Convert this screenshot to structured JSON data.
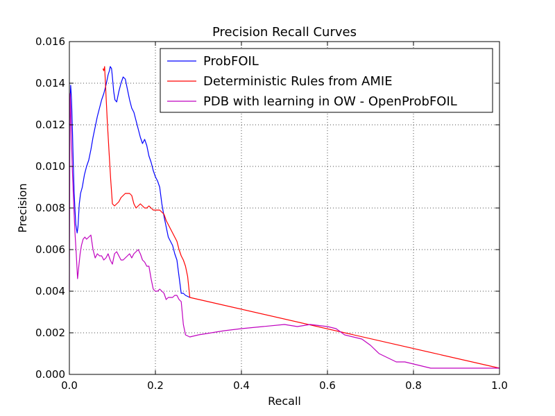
{
  "chart_data": {
    "type": "line",
    "title": "Precision Recall Curves",
    "xlabel": "Recall",
    "ylabel": "Precision",
    "xlim": [
      0.0,
      1.0
    ],
    "ylim": [
      0.0,
      0.016
    ],
    "grid": true,
    "legend_position": "top-right",
    "x_ticks": [
      0.0,
      0.2,
      0.4,
      0.6,
      0.8,
      1.0
    ],
    "x_tick_labels": [
      "0.0",
      "0.2",
      "0.4",
      "0.6",
      "0.8",
      "1.0"
    ],
    "y_ticks": [
      0.0,
      0.002,
      0.004,
      0.006,
      0.008,
      0.01,
      0.012,
      0.014,
      0.016
    ],
    "y_tick_labels": [
      "0.000",
      "0.002",
      "0.004",
      "0.006",
      "0.008",
      "0.010",
      "0.012",
      "0.014",
      "0.016"
    ],
    "series": [
      {
        "name": "ProbFOIL",
        "color": "#0000ff",
        "x": [
          0.0,
          0.003,
          0.005,
          0.007,
          0.009,
          0.011,
          0.013,
          0.015,
          0.018,
          0.02,
          0.023,
          0.026,
          0.03,
          0.035,
          0.04,
          0.045,
          0.05,
          0.055,
          0.06,
          0.065,
          0.07,
          0.075,
          0.08,
          0.085,
          0.088,
          0.09,
          0.093,
          0.095,
          0.098,
          0.1,
          0.103,
          0.106,
          0.11,
          0.115,
          0.12,
          0.125,
          0.13,
          0.135,
          0.14,
          0.145,
          0.15,
          0.155,
          0.16,
          0.165,
          0.17,
          0.175,
          0.18,
          0.185,
          0.19,
          0.195,
          0.2,
          0.205,
          0.21,
          0.215,
          0.22,
          0.225,
          0.23,
          0.235,
          0.24,
          0.245,
          0.25,
          0.255,
          0.26,
          0.265,
          0.27,
          0.28
        ],
        "y": [
          0.012,
          0.0139,
          0.0132,
          0.0119,
          0.0102,
          0.0088,
          0.0079,
          0.0072,
          0.0068,
          0.0071,
          0.0082,
          0.0087,
          0.009,
          0.0096,
          0.01,
          0.0103,
          0.0108,
          0.0114,
          0.0119,
          0.0124,
          0.0128,
          0.0132,
          0.0135,
          0.0139,
          0.0142,
          0.0144,
          0.0146,
          0.0148,
          0.0147,
          0.0143,
          0.0136,
          0.0132,
          0.0131,
          0.0136,
          0.014,
          0.0143,
          0.0142,
          0.0137,
          0.0132,
          0.0128,
          0.0126,
          0.0122,
          0.0118,
          0.0114,
          0.0111,
          0.0113,
          0.011,
          0.0105,
          0.0102,
          0.0098,
          0.0095,
          0.0093,
          0.009,
          0.0082,
          0.0076,
          0.0071,
          0.0066,
          0.0064,
          0.0062,
          0.0058,
          0.0055,
          0.0047,
          0.0039,
          0.0039,
          0.0038,
          0.0037
        ]
      },
      {
        "name": "Deterministic Rules from AMIE",
        "color": "#ff0000",
        "x": [
          0.078,
          0.08,
          0.082,
          0.085,
          0.088,
          0.092,
          0.096,
          0.1,
          0.105,
          0.11,
          0.115,
          0.12,
          0.125,
          0.13,
          0.135,
          0.14,
          0.145,
          0.15,
          0.155,
          0.16,
          0.165,
          0.17,
          0.175,
          0.18,
          0.185,
          0.19,
          0.195,
          0.2,
          0.205,
          0.21,
          0.215,
          0.22,
          0.225,
          0.23,
          0.235,
          0.24,
          0.245,
          0.25,
          0.255,
          0.26,
          0.265,
          0.27,
          0.275,
          0.28,
          1.0
        ],
        "y": [
          0.0147,
          0.0146,
          0.0148,
          0.0135,
          0.0122,
          0.0108,
          0.0094,
          0.0082,
          0.0081,
          0.0082,
          0.0083,
          0.0085,
          0.0086,
          0.0087,
          0.0087,
          0.0087,
          0.0086,
          0.0082,
          0.008,
          0.0081,
          0.0082,
          0.0081,
          0.008,
          0.008,
          0.0081,
          0.008,
          0.0079,
          0.0079,
          0.0079,
          0.0079,
          0.0078,
          0.0077,
          0.0074,
          0.0072,
          0.007,
          0.0068,
          0.0066,
          0.0064,
          0.006,
          0.0057,
          0.0055,
          0.0052,
          0.0047,
          0.0037,
          0.0003
        ]
      },
      {
        "name": "PDB with learning in OW - OpenProbFOIL",
        "color": "#bf00bf",
        "x": [
          0.0,
          0.001,
          0.002,
          0.003,
          0.005,
          0.007,
          0.01,
          0.013,
          0.016,
          0.019,
          0.022,
          0.025,
          0.028,
          0.032,
          0.036,
          0.04,
          0.045,
          0.05,
          0.055,
          0.06,
          0.065,
          0.07,
          0.075,
          0.08,
          0.085,
          0.09,
          0.095,
          0.1,
          0.105,
          0.11,
          0.115,
          0.12,
          0.125,
          0.13,
          0.135,
          0.14,
          0.145,
          0.15,
          0.155,
          0.16,
          0.165,
          0.17,
          0.175,
          0.18,
          0.185,
          0.19,
          0.195,
          0.2,
          0.205,
          0.21,
          0.215,
          0.22,
          0.225,
          0.23,
          0.235,
          0.24,
          0.245,
          0.25,
          0.255,
          0.26,
          0.265,
          0.27,
          0.28,
          0.3,
          0.33,
          0.36,
          0.4,
          0.45,
          0.5,
          0.53,
          0.56,
          0.6,
          0.62,
          0.64,
          0.66,
          0.68,
          0.7,
          0.72,
          0.74,
          0.76,
          0.78,
          0.8,
          0.82,
          0.84,
          0.9,
          1.0
        ],
        "y": [
          0.004,
          0.0105,
          0.0135,
          0.0128,
          0.0112,
          0.0098,
          0.0082,
          0.0068,
          0.0058,
          0.0046,
          0.0052,
          0.0058,
          0.0062,
          0.0065,
          0.0066,
          0.0065,
          0.0066,
          0.0067,
          0.006,
          0.0056,
          0.0058,
          0.0057,
          0.0057,
          0.0055,
          0.0056,
          0.0058,
          0.0055,
          0.0053,
          0.0058,
          0.0059,
          0.0057,
          0.0055,
          0.0055,
          0.0056,
          0.0057,
          0.0058,
          0.0056,
          0.0058,
          0.0059,
          0.006,
          0.0058,
          0.0055,
          0.0054,
          0.0052,
          0.0052,
          0.0046,
          0.0041,
          0.004,
          0.004,
          0.0041,
          0.004,
          0.0039,
          0.0036,
          0.0037,
          0.0037,
          0.0037,
          0.0038,
          0.0038,
          0.0036,
          0.0035,
          0.0024,
          0.0019,
          0.0018,
          0.0019,
          0.002,
          0.0021,
          0.0022,
          0.0023,
          0.0024,
          0.0023,
          0.0024,
          0.0023,
          0.0022,
          0.0019,
          0.0018,
          0.0017,
          0.0014,
          0.001,
          0.0008,
          0.0006,
          0.0006,
          0.0005,
          0.0004,
          0.0003,
          0.0003,
          0.0003
        ]
      }
    ]
  }
}
